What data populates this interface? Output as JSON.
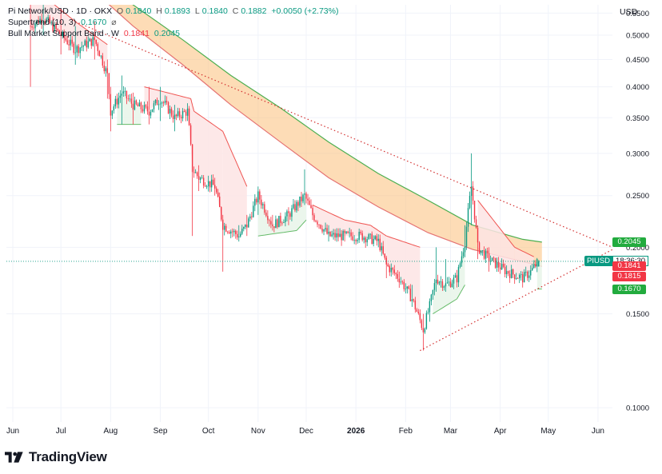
{
  "header": {
    "line1": {
      "symbol": "Pi Network/USD · 1D · OKX",
      "o_label": "O",
      "o_value": "0.1840",
      "h_label": "H",
      "h_value": "0.1893",
      "l_label": "L",
      "l_value": "0.1840",
      "c_label": "C",
      "c_value": "0.1882",
      "change": "+0.0050 (+2.73%)"
    },
    "line2": {
      "name": "Supertrend (10, 3)",
      "value": "0.1670",
      "icon": "hidden-eye-icon"
    },
    "line3": {
      "name": "Bull Market Support Band · W",
      "value1": "0.1841",
      "value2": "0.2045"
    }
  },
  "currency": "USD",
  "brand": {
    "name": "TradingView"
  },
  "price_badges": [
    {
      "value": "0.2045",
      "color": "#22ab3e"
    },
    {
      "value": "0.1841",
      "color": "#f23645"
    },
    {
      "value": "0.1815",
      "color": "#f23645"
    },
    {
      "value": "0.1670",
      "color": "#22ab3e"
    }
  ],
  "symbol_badge": {
    "name": "PIUSD",
    "timer": "18:36:30"
  },
  "colors": {
    "up": "#089981",
    "down": "#f23645",
    "band_fill": "#fbbf7a",
    "band_upper": "#4caf50",
    "band_lower": "#e57373",
    "supertrend_up": "#66bb6a",
    "supertrend_down": "#ef5350",
    "st_fill_up": "#e8f5e9",
    "st_fill_down": "#fde4e4",
    "trendline": "#d32f2f"
  },
  "chart_data": {
    "type": "candlestick",
    "title": "Pi Network/USD · 1D · OKX",
    "ylabel": "USD",
    "yscale": "log",
    "ylim": [
      0.094,
      0.57
    ],
    "y_ticks": [
      "0.1000",
      "0.1500",
      "0.2000",
      "0.2500",
      "0.3000",
      "0.3500",
      "0.4000",
      "0.4500",
      "0.5000",
      "0.5500"
    ],
    "y_tick_values": [
      0.1,
      0.15,
      0.2,
      0.25,
      0.3,
      0.35,
      0.4,
      0.45,
      0.5,
      0.55
    ],
    "x_ticks": [
      "Jun",
      "Jul",
      "Aug",
      "Sep",
      "Oct",
      "Nov",
      "Dec",
      "2026",
      "Feb",
      "Mar",
      "Apr",
      "May",
      "Jun"
    ],
    "x_tick_dates": [
      "2025-06-01",
      "2025-07-01",
      "2025-08-01",
      "2025-09-01",
      "2025-10-01",
      "2025-11-01",
      "2025-12-01",
      "2026-01-01",
      "2026-02-01",
      "2026-03-01",
      "2026-04-01",
      "2026-05-01",
      "2026-06-01"
    ],
    "xlim": [
      "2025-05-28",
      "2026-06-10"
    ],
    "price_anchors": [
      [
        "2025-06-12",
        0.52,
        0.57,
        0.4
      ],
      [
        "2025-06-20",
        0.54,
        0.6,
        0.5
      ],
      [
        "2025-07-01",
        0.5,
        0.56,
        0.46
      ],
      [
        "2025-07-10",
        0.47,
        0.52,
        0.44
      ],
      [
        "2025-07-22",
        0.49,
        0.53,
        0.45
      ],
      [
        "2025-07-30",
        0.42,
        0.45,
        0.38
      ],
      [
        "2025-08-01",
        0.36,
        0.4,
        0.33
      ],
      [
        "2025-08-08",
        0.39,
        0.42,
        0.34
      ],
      [
        "2025-08-15",
        0.37,
        0.39,
        0.34
      ],
      [
        "2025-08-25",
        0.36,
        0.4,
        0.34
      ],
      [
        "2025-09-01",
        0.38,
        0.4,
        0.345
      ],
      [
        "2025-09-10",
        0.35,
        0.37,
        0.33
      ],
      [
        "2025-09-18",
        0.36,
        0.37,
        0.345
      ],
      [
        "2025-09-21",
        0.28,
        0.3,
        0.21
      ],
      [
        "2025-09-25",
        0.27,
        0.285,
        0.255
      ],
      [
        "2025-10-05",
        0.26,
        0.27,
        0.25
      ],
      [
        "2025-10-10",
        0.22,
        0.23,
        0.18
      ],
      [
        "2025-10-20",
        0.21,
        0.22,
        0.205
      ],
      [
        "2025-10-25",
        0.22,
        0.23,
        0.21
      ],
      [
        "2025-11-01",
        0.25,
        0.26,
        0.23
      ],
      [
        "2025-11-10",
        0.22,
        0.23,
        0.215
      ],
      [
        "2025-11-20",
        0.23,
        0.235,
        0.22
      ],
      [
        "2025-11-30",
        0.25,
        0.28,
        0.24
      ],
      [
        "2025-12-05",
        0.23,
        0.24,
        0.225
      ],
      [
        "2025-12-15",
        0.21,
        0.22,
        0.205
      ],
      [
        "2025-12-25",
        0.21,
        0.215,
        0.205
      ],
      [
        "2026-01-05",
        0.21,
        0.215,
        0.205
      ],
      [
        "2026-01-15",
        0.205,
        0.21,
        0.2
      ],
      [
        "2026-01-20",
        0.185,
        0.19,
        0.175
      ],
      [
        "2026-01-28",
        0.175,
        0.18,
        0.17
      ],
      [
        "2026-02-05",
        0.16,
        0.17,
        0.155
      ],
      [
        "2026-02-12",
        0.14,
        0.15,
        0.128
      ],
      [
        "2026-02-16",
        0.155,
        0.16,
        0.145
      ],
      [
        "2026-02-20",
        0.175,
        0.2,
        0.165
      ],
      [
        "2026-02-26",
        0.17,
        0.19,
        0.165
      ],
      [
        "2026-03-05",
        0.175,
        0.18,
        0.17
      ],
      [
        "2026-03-10",
        0.205,
        0.22,
        0.2
      ],
      [
        "2026-03-14",
        0.26,
        0.3,
        0.22
      ],
      [
        "2026-03-18",
        0.2,
        0.22,
        0.19
      ],
      [
        "2026-03-25",
        0.19,
        0.2,
        0.18
      ],
      [
        "2026-04-05",
        0.18,
        0.185,
        0.175
      ],
      [
        "2026-04-15",
        0.175,
        0.18,
        0.17
      ],
      [
        "2026-04-20",
        0.18,
        0.185,
        0.175
      ],
      [
        "2026-04-25",
        0.1882,
        0.1893,
        0.184
      ]
    ],
    "bull_market_support_band": {
      "upper": [
        [
          "2025-06-15",
          0.8
        ],
        [
          "2025-07-15",
          0.68
        ],
        [
          "2025-08-15",
          0.57
        ],
        [
          "2025-09-15",
          0.49
        ],
        [
          "2025-10-15",
          0.42
        ],
        [
          "2025-11-15",
          0.365
        ],
        [
          "2025-12-15",
          0.315
        ],
        [
          "2026-01-15",
          0.275
        ],
        [
          "2026-02-15",
          0.245
        ],
        [
          "2026-03-15",
          0.22
        ],
        [
          "2026-04-15",
          0.207
        ],
        [
          "2026-04-27",
          0.2045
        ]
      ],
      "lower": [
        [
          "2025-06-15",
          0.76
        ],
        [
          "2025-07-15",
          0.63
        ],
        [
          "2025-08-15",
          0.52
        ],
        [
          "2025-09-15",
          0.44
        ],
        [
          "2025-10-15",
          0.37
        ],
        [
          "2025-11-15",
          0.315
        ],
        [
          "2025-12-15",
          0.27
        ],
        [
          "2026-01-15",
          0.238
        ],
        [
          "2026-02-15",
          0.213
        ],
        [
          "2026-03-15",
          0.198
        ],
        [
          "2026-04-15",
          0.188
        ],
        [
          "2026-04-27",
          0.1841
        ]
      ]
    },
    "supertrend": [
      [
        "2025-06-12",
        0.62,
        "down"
      ],
      [
        "2025-07-10",
        0.53,
        "down"
      ],
      [
        "2025-07-30",
        0.48,
        "down"
      ],
      [
        "2025-08-05",
        0.34,
        "up"
      ],
      [
        "2025-08-20",
        0.34,
        "up"
      ],
      [
        "2025-08-22",
        0.4,
        "down"
      ],
      [
        "2025-09-20",
        0.38,
        "down"
      ],
      [
        "2025-09-22",
        0.36,
        "down"
      ],
      [
        "2025-10-10",
        0.33,
        "down"
      ],
      [
        "2025-10-25",
        0.26,
        "down"
      ],
      [
        "2025-11-01",
        0.21,
        "up"
      ],
      [
        "2025-11-25",
        0.215,
        "up"
      ],
      [
        "2025-12-01",
        0.225,
        "up"
      ],
      [
        "2025-12-05",
        0.24,
        "down"
      ],
      [
        "2025-12-25",
        0.225,
        "down"
      ],
      [
        "2026-01-10",
        0.22,
        "down"
      ],
      [
        "2026-01-20",
        0.21,
        "down"
      ],
      [
        "2026-02-10",
        0.2,
        "down"
      ],
      [
        "2026-02-18",
        0.15,
        "up"
      ],
      [
        "2026-03-05",
        0.16,
        "up"
      ],
      [
        "2026-03-10",
        0.17,
        "up"
      ],
      [
        "2026-03-18",
        0.245,
        "down"
      ],
      [
        "2026-04-10",
        0.2,
        "down"
      ],
      [
        "2026-04-22",
        0.192,
        "down"
      ],
      [
        "2026-04-24",
        0.167,
        "up"
      ],
      [
        "2026-04-27",
        0.167,
        "up"
      ]
    ],
    "trendlines": [
      {
        "from": [
          "2025-07-10",
          0.53
        ],
        "to": [
          "2026-06-10",
          0.2
        ]
      },
      {
        "from": [
          "2026-02-10",
          0.128
        ],
        "to": [
          "2026-06-10",
          0.198
        ]
      }
    ],
    "last_price": 0.1882
  }
}
